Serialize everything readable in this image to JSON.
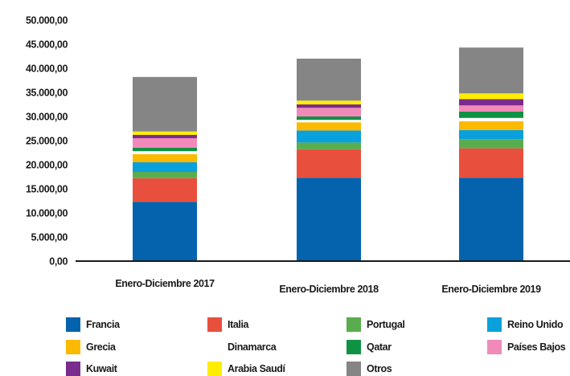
{
  "chart_data": {
    "type": "bar",
    "stacked": true,
    "title": "",
    "xlabel": "",
    "ylabel": "",
    "ylim": [
      0,
      50000
    ],
    "yticks": [
      "0,00",
      "5.000,00",
      "10.000,00",
      "15.000,00",
      "20.000,00",
      "25.000,00",
      "30.000,00",
      "35.000,00",
      "40.000,00",
      "45.000,00",
      "50.000,00"
    ],
    "categories": [
      "Enero-Diciembre 2017",
      "Enero-Diciembre 2018",
      "Enero-Diciembre 2019"
    ],
    "grid": false,
    "legend_position": "bottom",
    "series": [
      {
        "name": "Francia",
        "color": "#0563ae",
        "values": [
          12300,
          17300,
          17300
        ]
      },
      {
        "name": "Italia",
        "color": "#e8503d",
        "values": [
          4900,
          5900,
          6100
        ]
      },
      {
        "name": "Portugal",
        "color": "#5aad4e",
        "values": [
          1300,
          1400,
          1900
        ]
      },
      {
        "name": "Reino Unido",
        "color": "#0aa0dc",
        "values": [
          2000,
          2500,
          1900
        ]
      },
      {
        "name": "Grecia",
        "color": "#fbb900",
        "values": [
          1700,
          1700,
          1800
        ]
      },
      {
        "name": "Dinamarca",
        "color": "#ffffff",
        "values": [
          600,
          500,
          700
        ]
      },
      {
        "name": "Qatar",
        "color": "#109245",
        "values": [
          700,
          700,
          1300
        ]
      },
      {
        "name": "Países Bajos",
        "color": "#f18ab8",
        "values": [
          2000,
          1800,
          1300
        ]
      },
      {
        "name": "Kuwait",
        "color": "#7a2c8e",
        "values": [
          700,
          700,
          1300
        ]
      },
      {
        "name": "Arabia Saudí",
        "color": "#ffed00",
        "values": [
          700,
          800,
          1200
        ]
      },
      {
        "name": "Otros",
        "color": "#858585",
        "values": [
          11300,
          8700,
          9500
        ]
      }
    ]
  }
}
